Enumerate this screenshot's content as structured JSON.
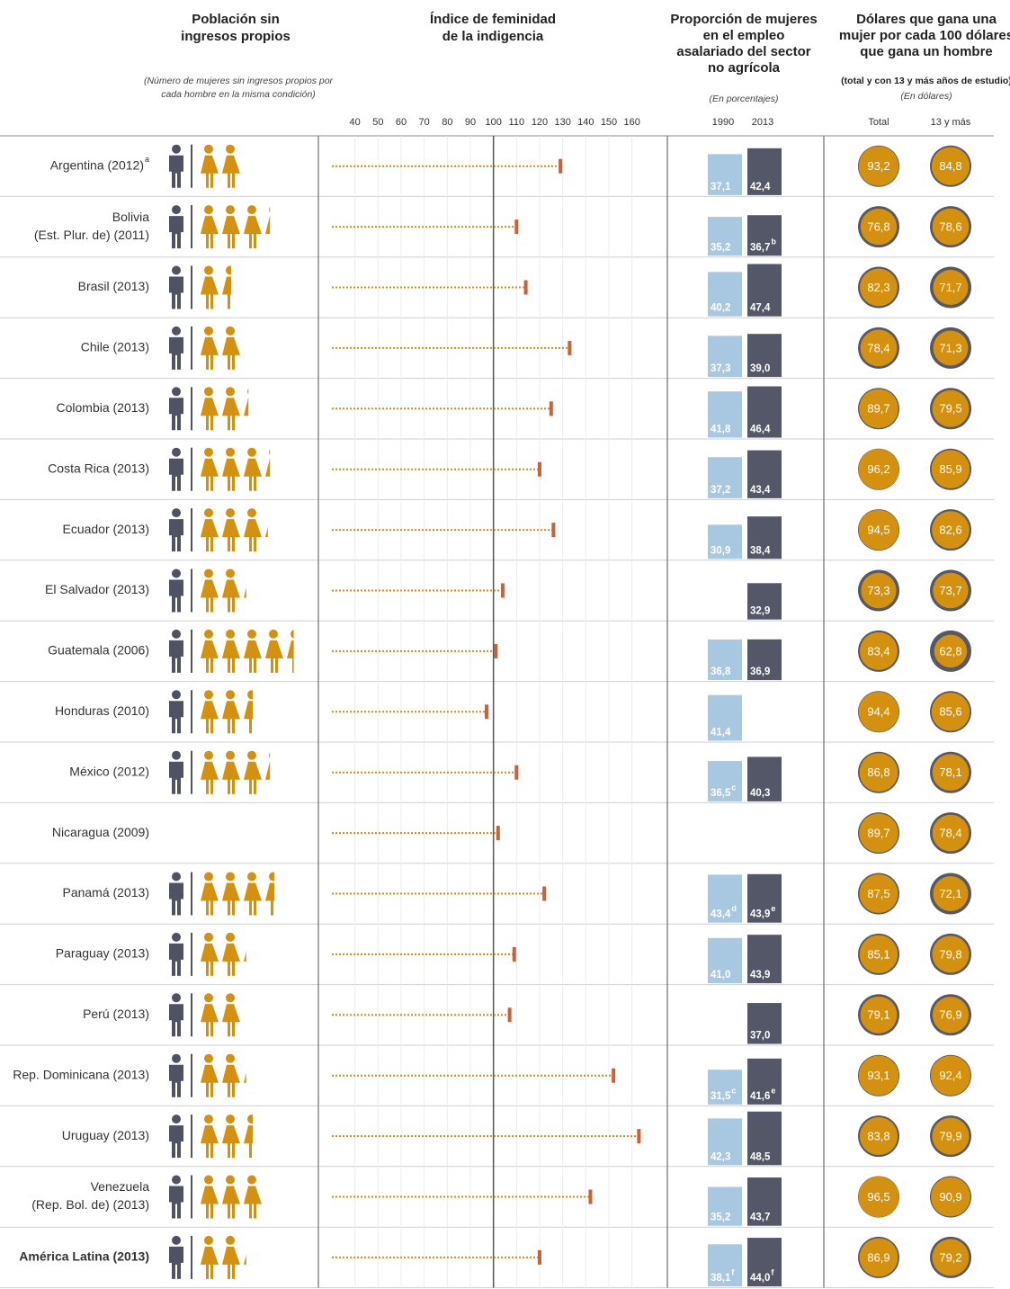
{
  "rows": [
    {
      "label": [
        "Argentina (2012)"
      ],
      "note": "a"
    },
    {
      "label": [
        "Bolivia",
        "(Est. Plur. de) (2011)"
      ]
    },
    {
      "label": [
        "Brasil (2013)"
      ]
    },
    {
      "label": [
        "Chile (2013)"
      ]
    },
    {
      "label": [
        "Colombia (2013)"
      ]
    },
    {
      "label": [
        "Costa Rica (2013)"
      ]
    },
    {
      "label": [
        "Ecuador (2013)"
      ]
    },
    {
      "label": [
        "El Salvador (2013)"
      ]
    },
    {
      "label": [
        "Guatemala (2006)"
      ]
    },
    {
      "label": [
        "Honduras (2010)"
      ]
    },
    {
      "label": [
        "México (2012)"
      ]
    },
    {
      "label": [
        "Nicaragua (2009)"
      ]
    },
    {
      "label": [
        "Panamá (2013)"
      ]
    },
    {
      "label": [
        "Paraguay (2013)"
      ]
    },
    {
      "label": [
        "Perú (2013)"
      ]
    },
    {
      "label": [
        "Rep. Dominicana (2013)"
      ]
    },
    {
      "label": [
        "Uruguay (2013)"
      ]
    },
    {
      "label": [
        "Venezuela",
        "(Rep. Bol. de) (2013)"
      ]
    },
    {
      "label": [
        "América Latina (2013)"
      ],
      "bold": true
    }
  ],
  "chart_data": [
    {
      "type": "pictogram",
      "title": [
        "Población sin",
        "ingresos propios"
      ],
      "subtitle": [
        "(Número de mujeres sin ingresos propios por",
        "cada hombre en la misma condición)"
      ],
      "man_color": "#4f5263",
      "color": "#d4900f",
      "values": [
        2.0,
        3.3,
        1.5,
        2.0,
        2.3,
        3.3,
        3.2,
        2.2,
        4.4,
        2.5,
        3.3,
        null,
        3.5,
        2.2,
        2.0,
        2.2,
        2.5,
        3.0,
        2.2
      ]
    },
    {
      "type": "dot",
      "title": [
        "Índice de feminidad",
        "de la indigencia"
      ],
      "xlim": [
        30,
        165
      ],
      "xticks": [
        40,
        50,
        60,
        70,
        80,
        90,
        100,
        110,
        120,
        130,
        140,
        150,
        160
      ],
      "reference": 100,
      "grid": true,
      "color": "#d4900f",
      "marker_color": "#c8623a",
      "values": [
        129,
        110,
        114,
        133,
        125,
        120,
        126,
        104,
        101,
        97,
        110,
        102,
        122,
        109,
        107,
        152,
        163,
        142,
        120
      ]
    },
    {
      "type": "bar",
      "title": [
        "Proporción de mujeres",
        "en el empleo",
        "asalariado del sector",
        "no agrícola"
      ],
      "subtitle": "(En porcentajes)",
      "ylim": [
        0,
        50
      ],
      "series": [
        {
          "name": "1990",
          "color": "#a8c7e1",
          "values": [
            37.1,
            35.2,
            40.2,
            37.3,
            41.8,
            37.2,
            30.9,
            null,
            36.8,
            41.4,
            36.5,
            null,
            43.4,
            41.0,
            null,
            31.5,
            42.3,
            35.2,
            38.1
          ],
          "value_labels": [
            "37,1",
            "35,2",
            "40,2",
            "37,3",
            "41,8",
            "37,2",
            "30,9",
            null,
            "36,8",
            "41,4",
            "36,5",
            null,
            "43,4",
            "41,0",
            null,
            "31,5",
            "42,3",
            "35,2",
            "38,1"
          ],
          "notes": [
            null,
            null,
            null,
            null,
            null,
            null,
            null,
            null,
            null,
            null,
            "c",
            null,
            "d",
            null,
            null,
            "c",
            null,
            null,
            "f"
          ]
        },
        {
          "name": "2013",
          "color": "#535768",
          "values": [
            42.4,
            36.7,
            47.4,
            39.0,
            46.4,
            43.4,
            38.4,
            32.9,
            36.9,
            null,
            40.3,
            null,
            43.9,
            43.9,
            37.0,
            41.6,
            48.5,
            43.7,
            44.0
          ],
          "value_labels": [
            "42,4",
            "36,7",
            "47,4",
            "39,0",
            "46,4",
            "43,4",
            "38,4",
            "32,9",
            "36,9",
            null,
            "40,3",
            null,
            "43,9",
            "43,9",
            "37,0",
            "41,6",
            "48,5",
            "43,7",
            "44,0"
          ],
          "notes": [
            null,
            "b",
            null,
            null,
            null,
            null,
            null,
            null,
            null,
            null,
            null,
            null,
            "e",
            null,
            null,
            "e",
            null,
            null,
            "f"
          ]
        }
      ]
    },
    {
      "type": "bubble",
      "title": [
        "Dólares que gana una",
        "mujer por cada 100 dólares",
        "que gana un hombre"
      ],
      "subtitle": [
        "(total y con 13 y más años de estudio)",
        "(En dólares)"
      ],
      "ring_color": "#555867",
      "series": [
        {
          "name": "Total",
          "color": "#d4900f",
          "values": [
            93.2,
            76.8,
            82.3,
            78.4,
            89.7,
            96.2,
            94.5,
            73.3,
            83.4,
            94.4,
            86.8,
            89.7,
            87.5,
            85.1,
            79.1,
            93.1,
            83.8,
            96.5,
            86.9
          ],
          "value_labels": [
            "93,2",
            "76,8",
            "82,3",
            "78,4",
            "89,7",
            "96,2",
            "94,5",
            "73,3",
            "83,4",
            "94,4",
            "86,8",
            "89,7",
            "87,5",
            "85,1",
            "79,1",
            "93,1",
            "83,8",
            "96,5",
            "86,9"
          ]
        },
        {
          "name": "13 y más",
          "color": "#d4900f",
          "values": [
            84.8,
            78.6,
            71.7,
            71.3,
            79.5,
            85.9,
            82.6,
            73.7,
            62.8,
            85.6,
            78.1,
            78.4,
            72.1,
            79.8,
            76.9,
            92.4,
            79.9,
            90.9,
            79.2
          ],
          "value_labels": [
            "84,8",
            "78,6",
            "71,7",
            "71,3",
            "79,5",
            "85,9",
            "82,6",
            "73,7",
            "62,8",
            "85,6",
            "78,1",
            "78,4",
            "72,1",
            "79,8",
            "76,9",
            "92,4",
            "79,9",
            "90,9",
            "79,2"
          ]
        }
      ]
    }
  ]
}
